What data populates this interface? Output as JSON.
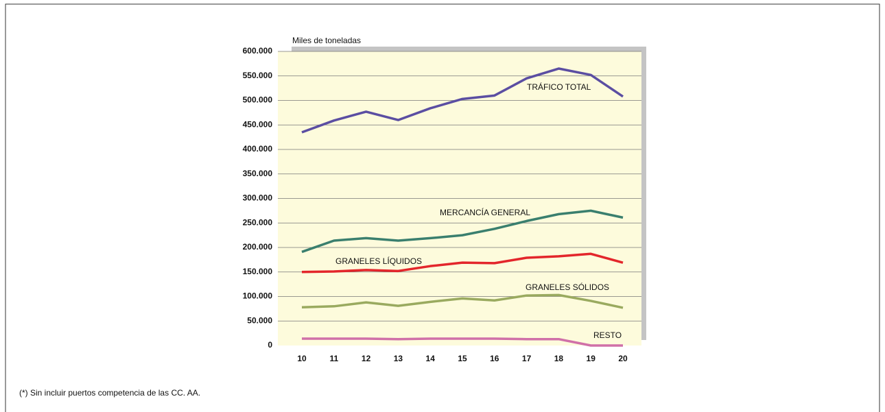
{
  "chart_data": {
    "type": "line",
    "ylabel": "Miles de toneladas",
    "categories": [
      "10",
      "11",
      "12",
      "13",
      "14",
      "15",
      "16",
      "17",
      "18",
      "19",
      "20"
    ],
    "series": [
      {
        "name": "TRÁFICO TOTAL",
        "color": "#5b4ea2",
        "values": [
          435000,
          459000,
          477000,
          460000,
          484000,
          503000,
          510000,
          545000,
          565000,
          552000,
          508000
        ]
      },
      {
        "name": "MERCANCÍA GENERAL",
        "color": "#3a7f6e",
        "values": [
          191000,
          214000,
          219000,
          214000,
          219000,
          225000,
          238000,
          254000,
          268000,
          275000,
          261000
        ]
      },
      {
        "name": "GRANELES LÍQUIDOS",
        "color": "#e3262b",
        "values": [
          150000,
          151000,
          154000,
          152000,
          162000,
          169000,
          168000,
          179000,
          182000,
          187000,
          169000
        ]
      },
      {
        "name": "GRANELES SÓLIDOS",
        "color": "#9aaa5f",
        "values": [
          78000,
          80000,
          88000,
          81000,
          89000,
          96000,
          92000,
          102000,
          103000,
          91000,
          77000
        ]
      },
      {
        "name": "RESTO",
        "color": "#d070a8",
        "values": [
          14000,
          14000,
          14000,
          13000,
          14000,
          14000,
          14000,
          13000,
          13000,
          0,
          0
        ]
      }
    ],
    "ylim": [
      0,
      600000
    ],
    "yticks": [
      0,
      {
        "value": 50000,
        "label": "50.000"
      },
      {
        "value": 100000,
        "label": "100.000"
      },
      {
        "value": 150000,
        "label": "150.000"
      },
      {
        "value": 200000,
        "label": "200.000"
      },
      {
        "value": 250000,
        "label": "250.000"
      },
      {
        "value": 300000,
        "label": "300.000"
      },
      {
        "value": 350000,
        "label": "350.000"
      },
      {
        "value": 400000,
        "label": "400.000"
      },
      {
        "value": 450000,
        "label": "450.000"
      },
      {
        "value": 500000,
        "label": "500.000"
      },
      {
        "value": 550000,
        "label": "550.000"
      },
      {
        "value": 600000,
        "label": "600.000"
      }
    ],
    "grid": true,
    "footnote": "(*) Sin incluir puertos competencia de las CC. AA."
  }
}
